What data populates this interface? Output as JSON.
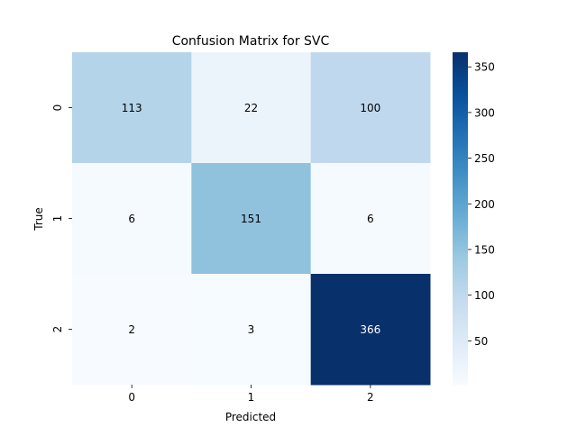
{
  "chart_data": {
    "type": "heatmap",
    "title": "Confusion Matrix for SVC",
    "xlabel": "Predicted",
    "ylabel": "True",
    "x_categories": [
      "0",
      "1",
      "2"
    ],
    "y_categories": [
      "0",
      "1",
      "2"
    ],
    "values": [
      [
        113,
        22,
        100
      ],
      [
        6,
        151,
        6
      ],
      [
        2,
        3,
        366
      ]
    ],
    "colormap": "Blues",
    "color_range": [
      2,
      366
    ],
    "colorbar_ticks": [
      "50",
      "100",
      "150",
      "200",
      "250",
      "300",
      "350"
    ],
    "colorbar_tick_values": [
      50,
      100,
      150,
      200,
      250,
      300,
      350
    ],
    "colors": {
      "low": "#f7fbff",
      "high": "#08306b",
      "annotation_dark": "#000000",
      "annotation_light": "#ffffff"
    }
  }
}
